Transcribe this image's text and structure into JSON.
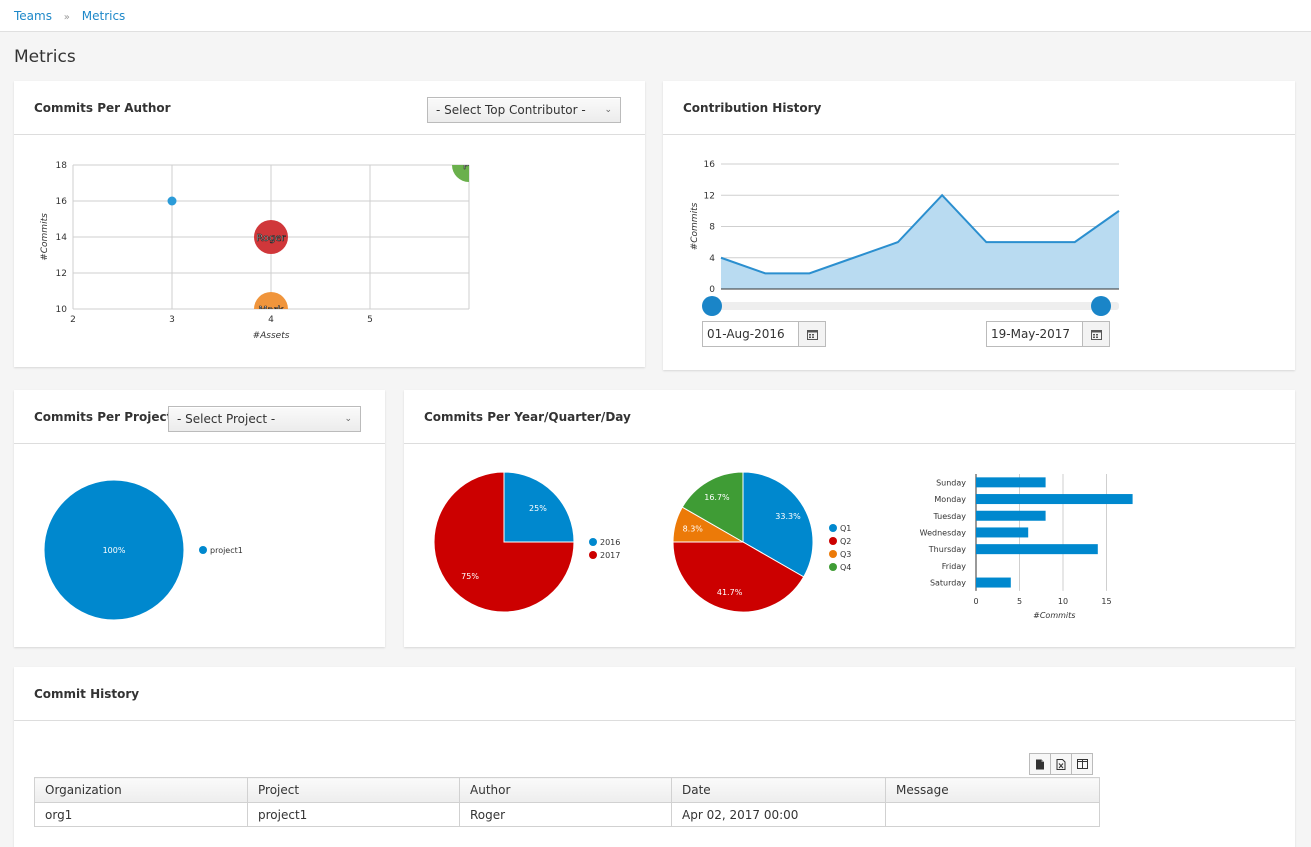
{
  "breadcrumb": {
    "teams": "Teams",
    "separator": "»",
    "metrics": "Metrics"
  },
  "page_title": "Metrics",
  "commits_per_author": {
    "title": "Commits Per Author",
    "select_value": "- Select Top Contributor -",
    "chart_data": {
      "type": "scatter",
      "xlabel": "#Assets",
      "ylabel": "#Commits",
      "xlim": [
        2,
        6
      ],
      "ylim": [
        10,
        18
      ],
      "x_ticks": [
        "2",
        "3",
        "4",
        "5"
      ],
      "y_ticks": [
        "10",
        "12",
        "14",
        "16",
        "18"
      ],
      "points": [
        {
          "name": "",
          "x": 3,
          "y": 16,
          "color": "#2b9bd8"
        },
        {
          "name": "Roger",
          "x": 4,
          "y": 14,
          "color": "#d0373a"
        },
        {
          "name": "Mark",
          "x": 4,
          "y": 10,
          "color": "#f0953c"
        },
        {
          "name": "Pe",
          "x": 6,
          "y": 18,
          "color": "#6ab04c"
        }
      ]
    }
  },
  "contribution_history": {
    "title": "Contribution History",
    "start_date": "01-Aug-2016",
    "end_date": "19-May-2017",
    "chart_data": {
      "type": "area",
      "ylabel": "#Commits",
      "ylim": [
        0,
        16
      ],
      "y_ticks": [
        "0",
        "4",
        "8",
        "12",
        "16"
      ],
      "values": [
        4,
        2,
        2,
        4,
        6,
        12,
        6,
        6,
        6,
        10
      ],
      "color": "#2b8fcf",
      "fill": "#b9dbf1"
    }
  },
  "commits_per_project": {
    "title": "Commits Per Project",
    "select_value": "- Select Project -",
    "chart_data": {
      "type": "pie",
      "slices": [
        {
          "label": "project1",
          "value": 100,
          "text": "100%",
          "color": "#0088ce"
        }
      ]
    }
  },
  "commits_per_period": {
    "title": "Commits Per Year/Quarter/Day",
    "year_chart": {
      "type": "pie",
      "slices": [
        {
          "label": "2016",
          "value": 25,
          "text": "25%",
          "color": "#0088ce"
        },
        {
          "label": "2017",
          "value": 75,
          "text": "75%",
          "color": "#cc0000"
        }
      ]
    },
    "quarter_chart": {
      "type": "pie",
      "slices": [
        {
          "label": "Q1",
          "value": 33.3,
          "text": "33.3%",
          "color": "#0088ce"
        },
        {
          "label": "Q2",
          "value": 41.7,
          "text": "41.7%",
          "color": "#cc0000"
        },
        {
          "label": "Q3",
          "value": 8.3,
          "text": "8.3%",
          "color": "#ec7a08"
        },
        {
          "label": "Q4",
          "value": 16.7,
          "text": "16.7%",
          "color": "#3f9c35"
        }
      ]
    },
    "day_chart": {
      "type": "bar",
      "orientation": "horizontal",
      "xlabel": "#Commits",
      "xlim": [
        0,
        20
      ],
      "x_ticks": [
        "0",
        "5",
        "10",
        "15"
      ],
      "categories": [
        "Sunday",
        "Monday",
        "Tuesday",
        "Wednesday",
        "Thursday",
        "Friday",
        "Saturday"
      ],
      "values": [
        8,
        18,
        8,
        6,
        14,
        0,
        4
      ],
      "color": "#0088ce"
    }
  },
  "commit_history": {
    "title": "Commit History",
    "columns": [
      "Organization",
      "Project",
      "Author",
      "Date",
      "Message"
    ],
    "rows": [
      [
        "org1",
        "project1",
        "Roger",
        "Apr 02, 2017 00:00",
        ""
      ]
    ]
  }
}
